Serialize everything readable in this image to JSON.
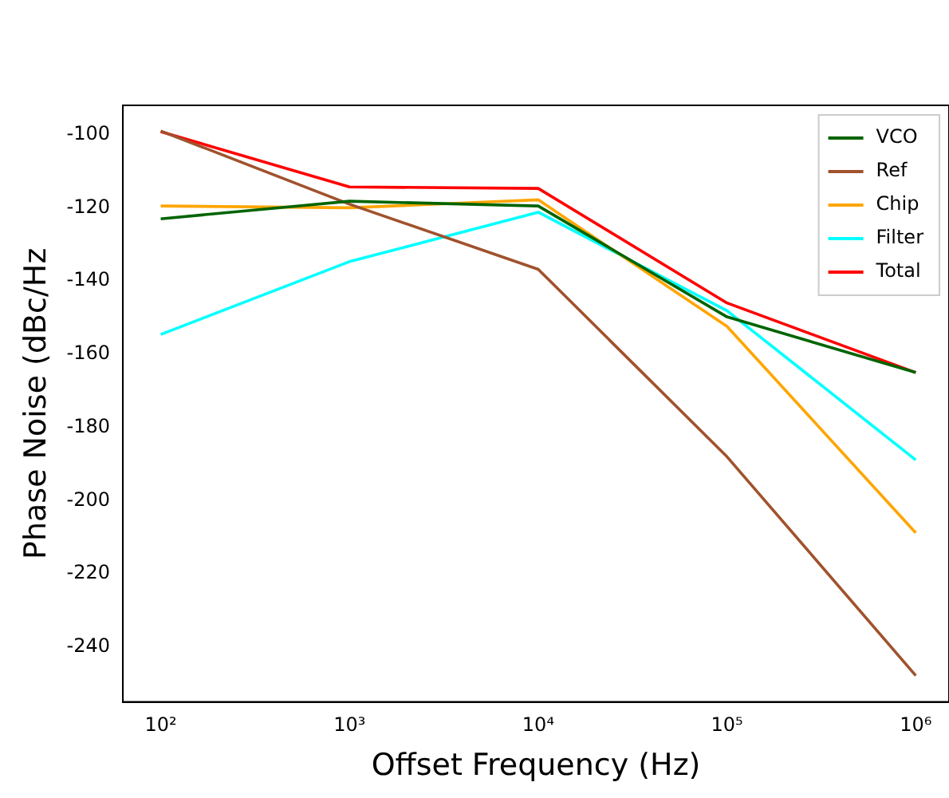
{
  "chart_data": {
    "type": "line",
    "xlabel": "Offset Frequency (Hz)",
    "ylabel": "Phase Noise (dBc/Hz",
    "x": [
      100,
      1000,
      10000,
      100000,
      1000000
    ],
    "log": "x",
    "xlim": [
      63,
      1500000
    ],
    "ylim": [
      -255,
      -92
    ],
    "xticks": [
      {
        "value": 100,
        "label": "10²"
      },
      {
        "value": 1000,
        "label": "10³"
      },
      {
        "value": 10000,
        "label": "10⁴"
      },
      {
        "value": 100000,
        "label": "10⁵"
      },
      {
        "value": 1000000,
        "label": "10⁶"
      }
    ],
    "yticks": [
      -100,
      -120,
      -140,
      -160,
      -180,
      -200,
      -220,
      -240
    ],
    "grid": false,
    "legend": "top right",
    "marker": "none",
    "line_style": "solid",
    "series": [
      {
        "name": "VCO",
        "color": "#006400",
        "values": [
          -123,
          -118.2,
          -119.5,
          -149.8,
          -165
        ]
      },
      {
        "name": "Ref",
        "color": "#a0522d",
        "values": [
          -99,
          -119,
          -136.8,
          -188,
          -247.8
        ]
      },
      {
        "name": "Chip",
        "color": "#ffa500",
        "values": [
          -119.5,
          -120,
          -117.8,
          -152.4,
          -208.8
        ]
      },
      {
        "name": "Filter",
        "color": "#00ffff",
        "values": [
          -154.6,
          -134.7,
          -121.2,
          -148.1,
          -188.9
        ]
      },
      {
        "name": "Total",
        "color": "#ff0000",
        "values": [
          -99.2,
          -114.3,
          -114.7,
          -146,
          -165
        ]
      }
    ]
  }
}
